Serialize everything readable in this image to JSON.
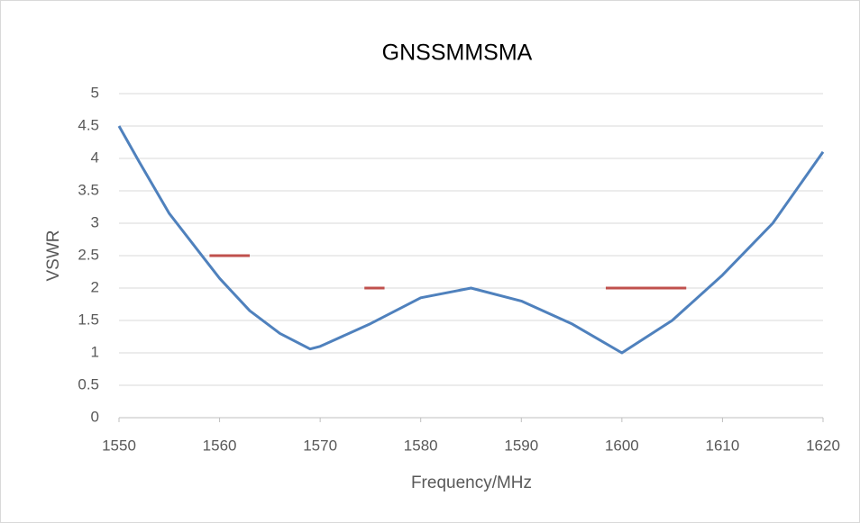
{
  "chart_data": {
    "type": "line",
    "title": "GNSSMMSMA",
    "x_label": "Frequency/MHz",
    "y_label": "VSWR",
    "xlim": [
      1550,
      1620
    ],
    "xticks": [
      1550,
      1560,
      1570,
      1580,
      1590,
      1600,
      1610,
      1620
    ],
    "ylim": [
      0,
      5
    ],
    "yticks": [
      0,
      0.5,
      1,
      1.5,
      2,
      2.5,
      3,
      3.5,
      4,
      4.5,
      5
    ],
    "grid": true,
    "series": [
      {
        "color": "#4f81bd",
        "x": [
          1550,
          1552,
          1555,
          1558,
          1560,
          1563,
          1566,
          1569,
          1570,
          1575,
          1580,
          1585,
          1590,
          1595,
          1600,
          1605,
          1610,
          1615,
          1620
        ],
        "values": [
          4.5,
          3.95,
          3.15,
          2.55,
          2.15,
          1.65,
          1.3,
          1.06,
          1.1,
          1.45,
          1.85,
          2.0,
          1.8,
          1.45,
          1.0,
          1.5,
          2.2,
          3.0,
          4.1
        ]
      },
      {
        "color": "#c0504d",
        "x": [
          1559,
          1563
        ],
        "values": [
          2.5,
          2.5
        ]
      },
      {
        "color": "#c0504d",
        "x": [
          1574.4,
          1576.4
        ],
        "values": [
          2,
          2
        ]
      },
      {
        "color": "#c0504d",
        "x": [
          1598.4,
          1606.4
        ],
        "values": [
          2,
          2
        ]
      }
    ]
  }
}
